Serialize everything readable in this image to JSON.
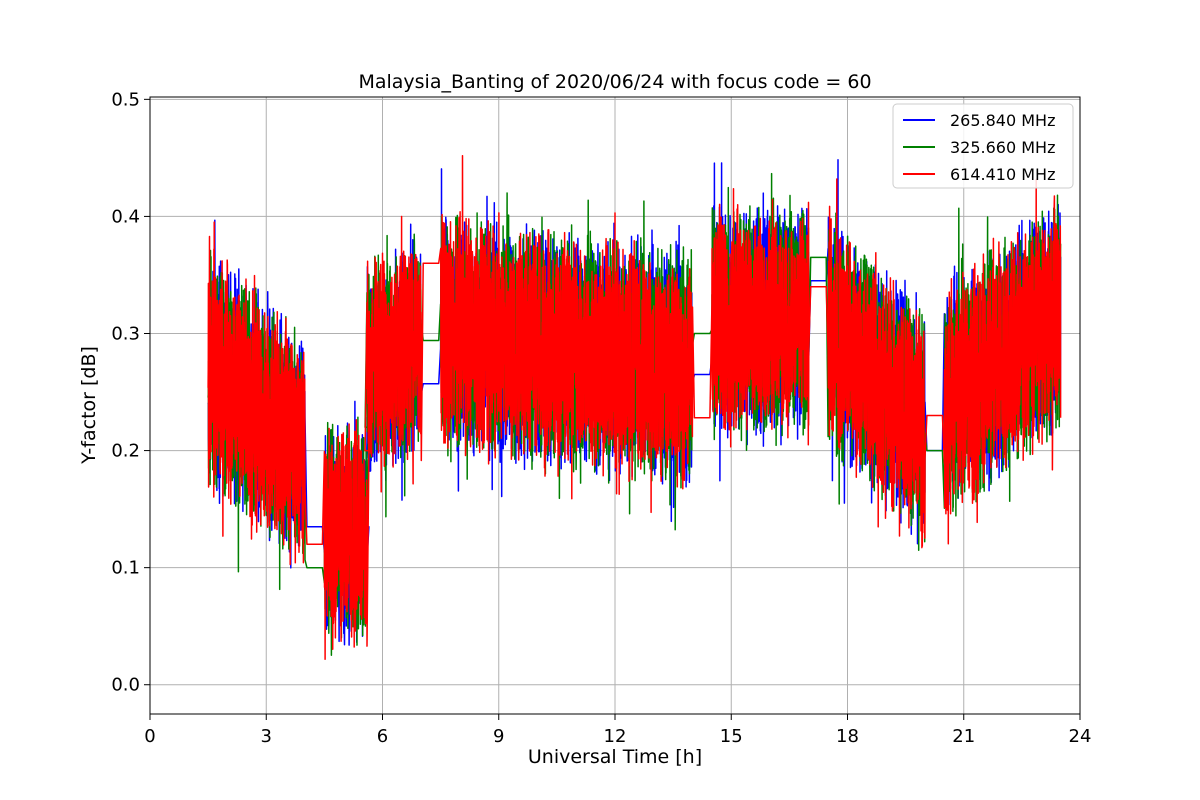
{
  "chart_data": {
    "type": "line",
    "title": "Malaysia_Banting of 2020/06/24 with focus code = 60",
    "xlabel": "Universal Time [h]",
    "ylabel": "Y-factor [dB]",
    "xlim": [
      0,
      24
    ],
    "ylim": [
      -0.025,
      0.502
    ],
    "xticks": [
      "0",
      "3",
      "6",
      "9",
      "12",
      "15",
      "18",
      "21",
      "24"
    ],
    "yticks": [
      "0.0",
      "0.1",
      "0.2",
      "0.3",
      "0.4",
      "0.5"
    ],
    "grid": true,
    "legend_position": "top-right",
    "segments": [
      {
        "x": [
          1.5,
          4.0
        ],
        "mean_start": 0.27,
        "mean_end": 0.2,
        "amplitude": 0.11
      },
      {
        "x": [
          4.5,
          5.6
        ],
        "mean_start": 0.13,
        "mean_end": 0.13,
        "amplitude": 0.1
      },
      {
        "x": [
          5.6,
          7.0
        ],
        "mean_start": 0.27,
        "mean_end": 0.29,
        "amplitude": 0.1
      },
      {
        "x": [
          7.5,
          14.0
        ],
        "mean_start": 0.3,
        "mean_end": 0.27,
        "amplitude": 0.11
      },
      {
        "x": [
          14.5,
          17.0
        ],
        "mean_start": 0.31,
        "mean_end": 0.31,
        "amplitude": 0.11
      },
      {
        "x": [
          17.5,
          20.0
        ],
        "mean_start": 0.3,
        "mean_end": 0.22,
        "amplitude": 0.11
      },
      {
        "x": [
          20.5,
          23.5
        ],
        "mean_start": 0.24,
        "mean_end": 0.32,
        "amplitude": 0.11
      }
    ],
    "series": [
      {
        "name": "265.840 MHz",
        "color": "#0000ff",
        "gap_values": [
          0.135,
          0.135,
          0.257,
          0.265,
          0.345,
          0.2
        ]
      },
      {
        "name": "325.660 MHz",
        "color": "#008000",
        "gap_values": [
          0.1,
          0.22,
          0.294,
          0.3,
          0.365,
          0.2
        ]
      },
      {
        "name": "614.410 MHz",
        "color": "#ff0000",
        "gap_values": [
          0.12,
          0.2,
          0.36,
          0.228,
          0.34,
          0.23
        ]
      }
    ]
  }
}
